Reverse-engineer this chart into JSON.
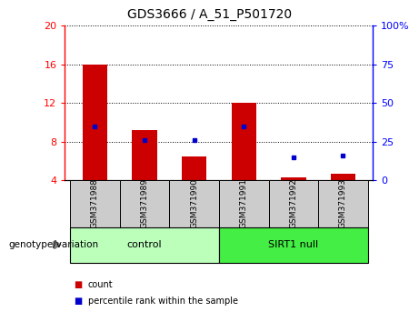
{
  "title": "GDS3666 / A_51_P501720",
  "samples": [
    "GSM371988",
    "GSM371989",
    "GSM371990",
    "GSM371991",
    "GSM371992",
    "GSM371993"
  ],
  "count_values": [
    16.0,
    9.2,
    6.5,
    12.0,
    4.3,
    4.7
  ],
  "percentile_values": [
    35,
    26,
    26,
    35,
    15,
    16
  ],
  "ylim_left": [
    4,
    20
  ],
  "ylim_right": [
    0,
    100
  ],
  "yticks_left": [
    4,
    8,
    12,
    16,
    20
  ],
  "yticks_right": [
    0,
    25,
    50,
    75,
    100
  ],
  "bar_color": "#cc0000",
  "dot_color": "#0000cc",
  "control_label": "control",
  "sirt1_label": "SIRT1 null",
  "group_label": "genotype/variation",
  "legend_count": "count",
  "legend_percentile": "percentile rank within the sample",
  "bar_width": 0.5,
  "control_color": "#bbffbb",
  "sirt1_color": "#44ee44",
  "xlabel_area_color": "#cccccc"
}
